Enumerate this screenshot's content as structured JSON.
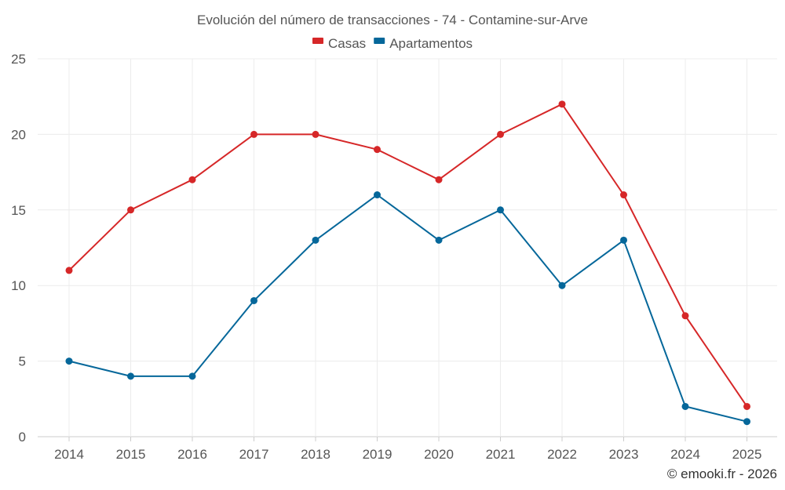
{
  "chart_data": {
    "type": "line",
    "title": "Evolución del número de transacciones - 74 - Contamine-sur-Arve",
    "categories": [
      "2014",
      "2015",
      "2016",
      "2017",
      "2018",
      "2019",
      "2020",
      "2021",
      "2022",
      "2023",
      "2024",
      "2025"
    ],
    "series": [
      {
        "name": "Casas",
        "color": "#d62728",
        "values": [
          11,
          15,
          17,
          20,
          20,
          19,
          17,
          20,
          22,
          16,
          8,
          2
        ]
      },
      {
        "name": "Apartamentos",
        "color": "#05679a",
        "values": [
          5,
          4,
          4,
          9,
          13,
          16,
          13,
          15,
          10,
          13,
          2,
          1
        ]
      }
    ],
    "ylim": [
      0,
      25
    ],
    "yticks": [
      0,
      5,
      10,
      15,
      20,
      25
    ],
    "xlabel": "",
    "ylabel": "",
    "grid": true,
    "legend_position": "top-center"
  },
  "credit": "© emooki.fr - 2026"
}
